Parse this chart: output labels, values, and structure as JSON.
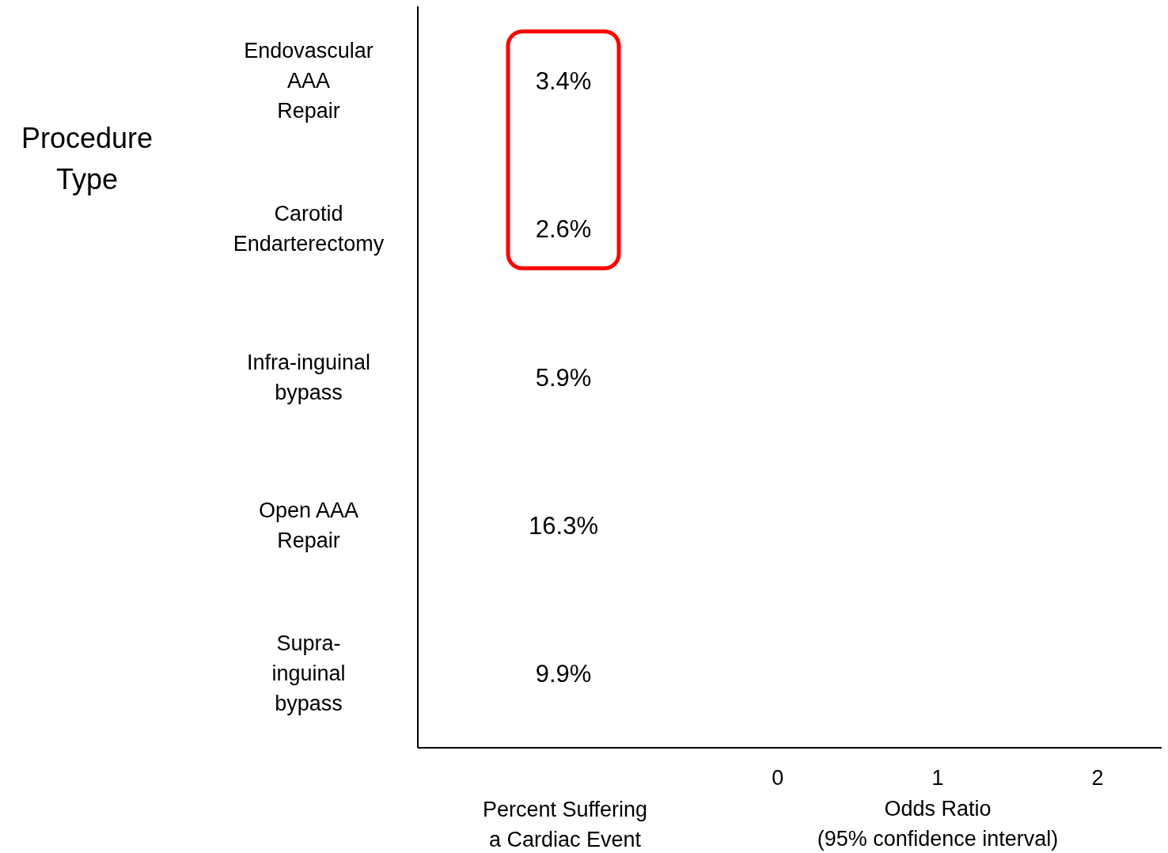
{
  "chart_data": {
    "type": "bar",
    "orientation": "horizontal",
    "ylabel": "Procedure\nType",
    "xlabel": "Odds Ratio\n(95% confidence interval)",
    "categories": [
      "Endovascular\nAAA\nRepair",
      "Carotid\nEndarterectomy",
      "Infra-inguinal\nbypass",
      "Open AAA\nRepair",
      "Supra-\ninguinal\nbypass"
    ],
    "values": [
      null,
      null,
      null,
      null,
      null
    ],
    "xlim": [
      -2.25,
      2.4
    ],
    "xticks": [
      0,
      1,
      2
    ],
    "annotations": [
      "Percent Suffering\na Cardiac Event",
      "3.4%",
      "2.6%",
      "5.9%",
      "16.3%",
      "9.9%"
    ]
  }
}
